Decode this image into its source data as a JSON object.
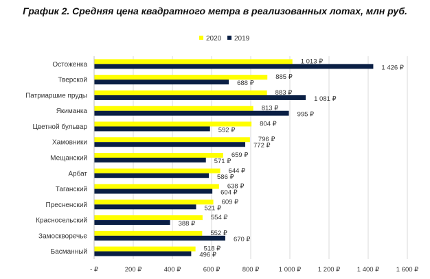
{
  "chart_data": {
    "type": "bar",
    "orientation": "horizontal",
    "title": "График 2.  Средняя цена квадратного метра в реализованных лотах, млн руб.",
    "categories": [
      "Остоженка",
      "Тверской",
      "Патриаршие пруды",
      "Якиманка",
      "Цветной бульвар",
      "Хамовники",
      "Мещанский",
      "Арбат",
      "Таганский",
      "Пресненский",
      "Красносельский",
      "Замоскворечье",
      "Басманный"
    ],
    "series": [
      {
        "name": "2020",
        "color": "#ffff00",
        "values": [
          1013,
          885,
          883,
          813,
          804,
          796,
          659,
          644,
          638,
          609,
          554,
          552,
          518
        ],
        "labels": [
          "1 013 ₽",
          "885 ₽",
          "883 ₽",
          "813 ₽",
          "804 ₽",
          "796 ₽",
          "659 ₽",
          "644 ₽",
          "638 ₽",
          "609 ₽",
          "554 ₽",
          "552 ₽",
          "518 ₽"
        ]
      },
      {
        "name": "2019",
        "color": "#0a1f44",
        "values": [
          1426,
          688,
          1081,
          995,
          592,
          772,
          571,
          586,
          604,
          521,
          388,
          670,
          496
        ],
        "labels": [
          "1 426 ₽",
          "688 ₽",
          "1 081 ₽",
          "995 ₽",
          "592 ₽",
          "772 ₽",
          "571 ₽",
          "586 ₽",
          "604 ₽",
          "521 ₽",
          "388 ₽",
          "670 ₽",
          "496 ₽"
        ]
      }
    ],
    "xlim": [
      0,
      1600
    ],
    "xticks": [
      0,
      200,
      400,
      600,
      800,
      1000,
      1200,
      1400,
      1600
    ],
    "xtick_labels": [
      "-  ₽",
      "200 ₽",
      "400 ₽",
      "600 ₽",
      "800 ₽",
      "1 000 ₽",
      "1 200 ₽",
      "1 400 ₽",
      "1 600 ₽"
    ],
    "grid": "vertical",
    "legend_position": "top"
  }
}
